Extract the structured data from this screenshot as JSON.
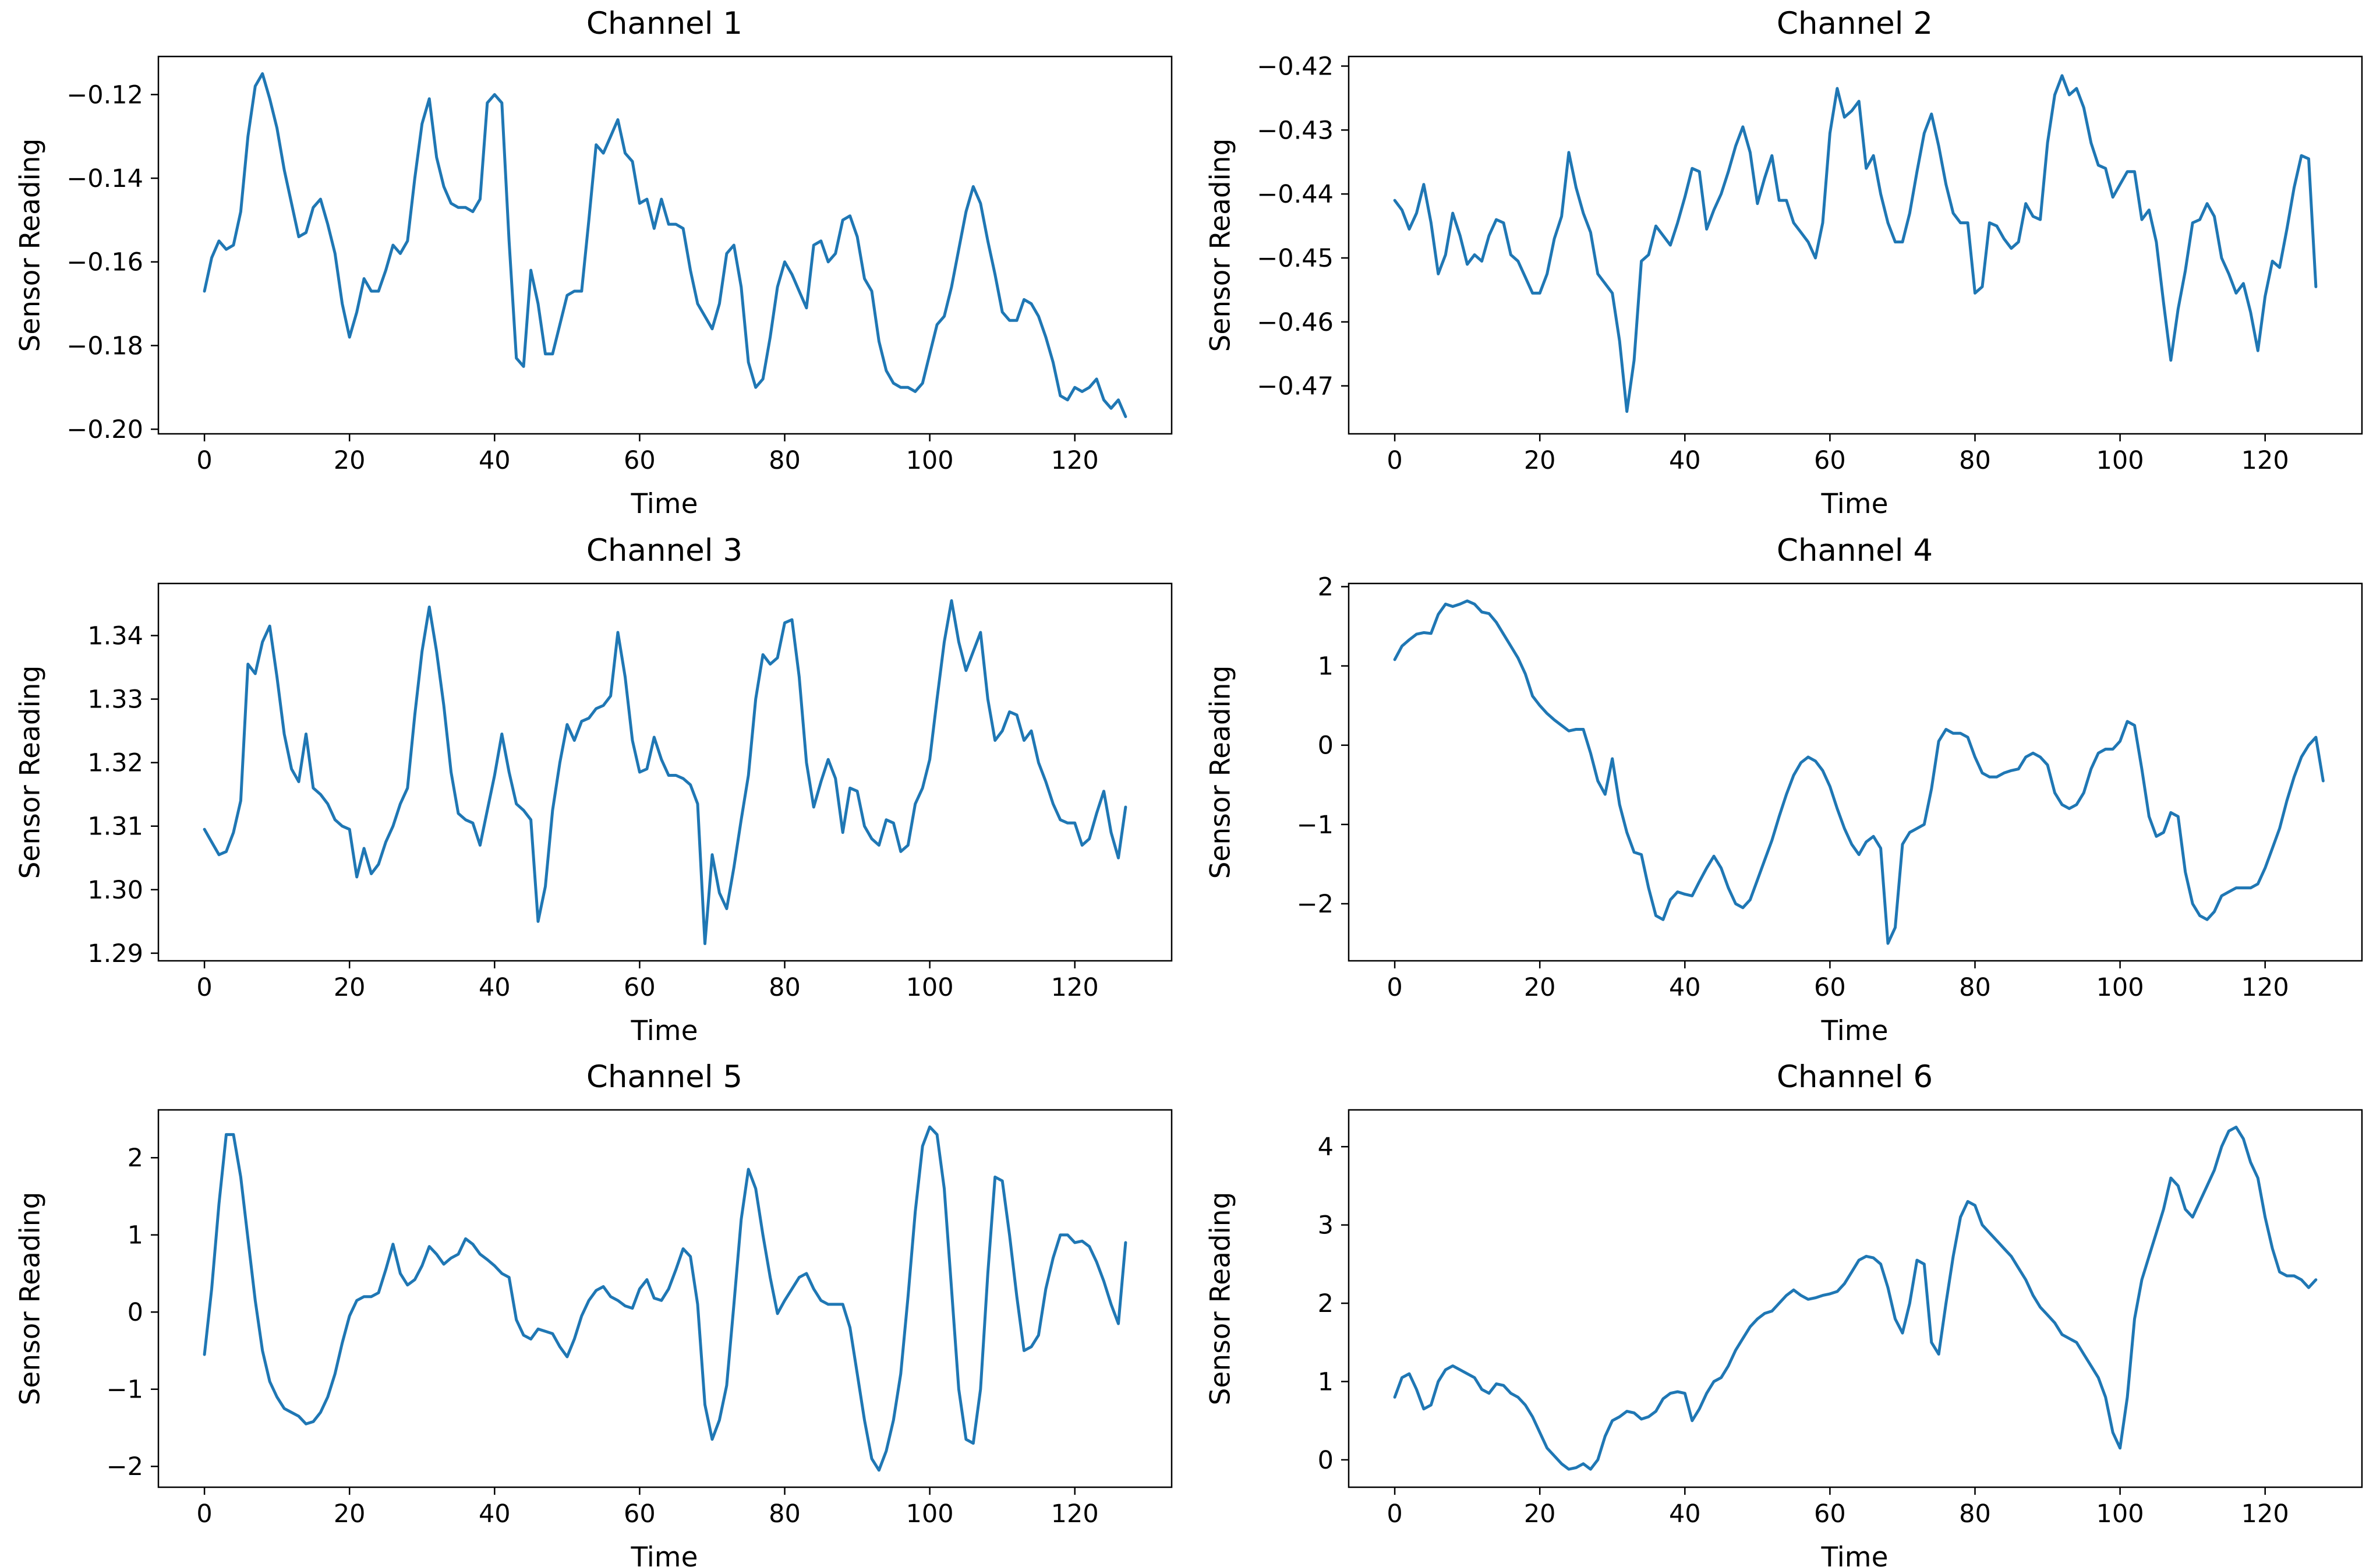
{
  "figure": {
    "background": "#ffffff",
    "line_color": "#1f77b4",
    "axis_color": "#000000",
    "text_color": "#000000"
  },
  "chart_data": [
    {
      "type": "line",
      "title": "Channel 1",
      "xlabel": "Time",
      "ylabel": "Sensor Reading",
      "grid": false,
      "legend": null,
      "xlim": [
        -6.35,
        133.35
      ],
      "ylim": [
        -0.2011,
        -0.1109
      ],
      "xtick_values": [
        0,
        20,
        40,
        60,
        80,
        100,
        120
      ],
      "xtick_labels": [
        "0",
        "20",
        "40",
        "60",
        "80",
        "100",
        "120"
      ],
      "ytick_values": [
        -0.2,
        -0.18,
        -0.16,
        -0.14,
        -0.12
      ],
      "ytick_labels": [
        "−0.20",
        "−0.18",
        "−0.16",
        "−0.14",
        "−0.12"
      ],
      "values": [
        -0.167,
        -0.159,
        -0.155,
        -0.157,
        -0.156,
        -0.148,
        -0.13,
        -0.118,
        -0.115,
        -0.121,
        -0.128,
        -0.138,
        -0.146,
        -0.154,
        -0.153,
        -0.147,
        -0.145,
        -0.151,
        -0.158,
        -0.17,
        -0.178,
        -0.172,
        -0.164,
        -0.167,
        -0.167,
        -0.162,
        -0.156,
        -0.158,
        -0.155,
        -0.14,
        -0.127,
        -0.121,
        -0.135,
        -0.142,
        -0.146,
        -0.147,
        -0.147,
        -0.148,
        -0.145,
        -0.122,
        -0.12,
        -0.122,
        -0.155,
        -0.183,
        -0.185,
        -0.162,
        -0.17,
        -0.182,
        -0.182,
        -0.175,
        -0.168,
        -0.167,
        -0.167,
        -0.15,
        -0.132,
        -0.134,
        -0.13,
        -0.126,
        -0.134,
        -0.136,
        -0.146,
        -0.145,
        -0.152,
        -0.145,
        -0.151,
        -0.151,
        -0.152,
        -0.162,
        -0.17,
        -0.173,
        -0.176,
        -0.17,
        -0.158,
        -0.156,
        -0.166,
        -0.184,
        -0.19,
        -0.188,
        -0.178,
        -0.166,
        -0.16,
        -0.163,
        -0.167,
        -0.171,
        -0.156,
        -0.155,
        -0.16,
        -0.158,
        -0.15,
        -0.149,
        -0.154,
        -0.164,
        -0.167,
        -0.179,
        -0.186,
        -0.189,
        -0.19,
        -0.19,
        -0.191,
        -0.189,
        -0.182,
        -0.175,
        -0.173,
        -0.166,
        -0.157,
        -0.148,
        -0.142,
        -0.146,
        -0.155,
        -0.163,
        -0.172,
        -0.174,
        -0.174,
        -0.169,
        -0.17,
        -0.173,
        -0.178,
        -0.184,
        -0.192,
        -0.193,
        -0.19,
        -0.191,
        -0.19,
        -0.188,
        -0.193,
        -0.195,
        -0.193,
        -0.197
      ]
    },
    {
      "type": "line",
      "title": "Channel 2",
      "xlabel": "Time",
      "ylabel": "Sensor Reading",
      "grid": false,
      "legend": null,
      "xlim": [
        -6.35,
        133.35
      ],
      "ylim": [
        -0.4775,
        -0.4185
      ],
      "xtick_values": [
        0,
        20,
        40,
        60,
        80,
        100,
        120
      ],
      "xtick_labels": [
        "0",
        "20",
        "40",
        "60",
        "80",
        "100",
        "120"
      ],
      "ytick_values": [
        -0.47,
        -0.46,
        -0.45,
        -0.44,
        -0.43,
        -0.42
      ],
      "ytick_labels": [
        "−0.47",
        "−0.46",
        "−0.45",
        "−0.44",
        "−0.43",
        "−0.42"
      ],
      "values": [
        -0.441,
        -0.4425,
        -0.4455,
        -0.443,
        -0.4385,
        -0.4445,
        -0.4525,
        -0.4495,
        -0.443,
        -0.4465,
        -0.451,
        -0.4495,
        -0.4505,
        -0.4465,
        -0.444,
        -0.4445,
        -0.4495,
        -0.4505,
        -0.453,
        -0.4555,
        -0.4555,
        -0.4525,
        -0.447,
        -0.4435,
        -0.4335,
        -0.439,
        -0.443,
        -0.446,
        -0.4525,
        -0.454,
        -0.4555,
        -0.463,
        -0.474,
        -0.466,
        -0.4505,
        -0.4495,
        -0.445,
        -0.4465,
        -0.448,
        -0.4445,
        -0.4405,
        -0.436,
        -0.4365,
        -0.4455,
        -0.4425,
        -0.44,
        -0.4365,
        -0.4325,
        -0.4295,
        -0.4335,
        -0.4415,
        -0.4375,
        -0.434,
        -0.441,
        -0.441,
        -0.4445,
        -0.446,
        -0.4475,
        -0.45,
        -0.4445,
        -0.4305,
        -0.4235,
        -0.428,
        -0.427,
        -0.4255,
        -0.436,
        -0.434,
        -0.44,
        -0.4445,
        -0.4475,
        -0.4475,
        -0.443,
        -0.4365,
        -0.4305,
        -0.4275,
        -0.4325,
        -0.4385,
        -0.443,
        -0.4445,
        -0.4445,
        -0.4555,
        -0.4545,
        -0.4445,
        -0.445,
        -0.447,
        -0.4485,
        -0.4475,
        -0.4415,
        -0.4435,
        -0.444,
        -0.432,
        -0.4245,
        -0.4215,
        -0.4245,
        -0.4235,
        -0.4265,
        -0.432,
        -0.4355,
        -0.436,
        -0.4405,
        -0.4385,
        -0.4365,
        -0.4365,
        -0.444,
        -0.4425,
        -0.4475,
        -0.457,
        -0.466,
        -0.458,
        -0.452,
        -0.4445,
        -0.444,
        -0.4415,
        -0.4435,
        -0.45,
        -0.4525,
        -0.4555,
        -0.454,
        -0.4585,
        -0.4645,
        -0.456,
        -0.4505,
        -0.4515,
        -0.4455,
        -0.439,
        -0.434,
        -0.4345,
        -0.4545
      ]
    },
    {
      "type": "line",
      "title": "Channel 3",
      "xlabel": "Time",
      "ylabel": "Sensor Reading",
      "grid": false,
      "legend": null,
      "xlim": [
        -6.35,
        133.35
      ],
      "ylim": [
        1.2888,
        1.3482
      ],
      "xtick_values": [
        0,
        20,
        40,
        60,
        80,
        100,
        120
      ],
      "xtick_labels": [
        "0",
        "20",
        "40",
        "60",
        "80",
        "100",
        "120"
      ],
      "ytick_values": [
        1.29,
        1.3,
        1.31,
        1.32,
        1.33,
        1.34
      ],
      "ytick_labels": [
        "1.29",
        "1.30",
        "1.31",
        "1.32",
        "1.33",
        "1.34"
      ],
      "values": [
        1.3095,
        1.3075,
        1.3055,
        1.306,
        1.309,
        1.314,
        1.3355,
        1.334,
        1.339,
        1.3415,
        1.3335,
        1.3245,
        1.319,
        1.317,
        1.3245,
        1.316,
        1.315,
        1.3135,
        1.311,
        1.31,
        1.3095,
        1.302,
        1.3065,
        1.3025,
        1.304,
        1.3075,
        1.31,
        1.3135,
        1.316,
        1.3275,
        1.3375,
        1.3445,
        1.3375,
        1.329,
        1.3185,
        1.312,
        1.311,
        1.3105,
        1.307,
        1.3125,
        1.318,
        1.3245,
        1.3185,
        1.3135,
        1.3125,
        1.311,
        1.295,
        1.3005,
        1.3125,
        1.32,
        1.326,
        1.3235,
        1.3265,
        1.327,
        1.3285,
        1.329,
        1.3305,
        1.3405,
        1.3335,
        1.3235,
        1.3185,
        1.319,
        1.324,
        1.3205,
        1.318,
        1.318,
        1.3175,
        1.3165,
        1.3135,
        1.2915,
        1.3055,
        1.2995,
        1.297,
        1.3035,
        1.311,
        1.318,
        1.33,
        1.337,
        1.3355,
        1.3365,
        1.342,
        1.3425,
        1.3335,
        1.32,
        1.313,
        1.317,
        1.3205,
        1.3175,
        1.309,
        1.316,
        1.3155,
        1.31,
        1.308,
        1.307,
        1.311,
        1.3105,
        1.306,
        1.307,
        1.3135,
        1.316,
        1.3205,
        1.33,
        1.339,
        1.3455,
        1.339,
        1.3345,
        1.3375,
        1.3405,
        1.33,
        1.3235,
        1.325,
        1.328,
        1.3275,
        1.3235,
        1.325,
        1.32,
        1.317,
        1.3135,
        1.311,
        1.3105,
        1.3105,
        1.307,
        1.308,
        1.312,
        1.3155,
        1.309,
        1.305,
        1.313
      ]
    },
    {
      "type": "line",
      "title": "Channel 4",
      "xlabel": "Time",
      "ylabel": "Sensor Reading",
      "grid": false,
      "legend": null,
      "xlim": [
        -6.35,
        133.35
      ],
      "ylim": [
        -2.72,
        2.04
      ],
      "xtick_values": [
        0,
        20,
        40,
        60,
        80,
        100,
        120
      ],
      "xtick_labels": [
        "0",
        "20",
        "40",
        "60",
        "80",
        "100",
        "120"
      ],
      "ytick_values": [
        -2,
        -1,
        0,
        1,
        2
      ],
      "ytick_labels": [
        "−2",
        "−1",
        "0",
        "1",
        "2"
      ],
      "values": [
        1.08,
        1.25,
        1.33,
        1.4,
        1.42,
        1.41,
        1.65,
        1.78,
        1.75,
        1.78,
        1.82,
        1.78,
        1.68,
        1.66,
        1.55,
        1.4,
        1.25,
        1.1,
        0.9,
        0.62,
        0.5,
        0.4,
        0.32,
        0.25,
        0.18,
        0.2,
        0.2,
        -0.1,
        -0.45,
        -0.62,
        -0.17,
        -0.75,
        -1.1,
        -1.35,
        -1.38,
        -1.8,
        -2.15,
        -2.2,
        -1.95,
        -1.85,
        -1.88,
        -1.9,
        -1.72,
        -1.55,
        -1.4,
        -1.55,
        -1.8,
        -2.0,
        -2.05,
        -1.95,
        -1.7,
        -1.45,
        -1.2,
        -0.9,
        -0.62,
        -0.38,
        -0.22,
        -0.15,
        -0.2,
        -0.32,
        -0.52,
        -0.8,
        -1.05,
        -1.25,
        -1.38,
        -1.22,
        -1.15,
        -1.3,
        -2.5,
        -2.3,
        -1.25,
        -1.1,
        -1.05,
        -1.0,
        -0.55,
        0.05,
        0.2,
        0.15,
        0.15,
        0.1,
        -0.15,
        -0.35,
        -0.4,
        -0.4,
        -0.35,
        -0.32,
        -0.3,
        -0.15,
        -0.1,
        -0.15,
        -0.25,
        -0.6,
        -0.75,
        -0.8,
        -0.75,
        -0.6,
        -0.3,
        -0.1,
        -0.05,
        -0.05,
        0.05,
        0.3,
        0.25,
        -0.3,
        -0.9,
        -1.15,
        -1.1,
        -0.85,
        -0.9,
        -1.6,
        -2.0,
        -2.15,
        -2.2,
        -2.1,
        -1.9,
        -1.85,
        -1.8,
        -1.8,
        -1.8,
        -1.75,
        -1.55,
        -1.3,
        -1.05,
        -0.7,
        -0.4,
        -0.15,
        0.0,
        0.1,
        -0.45
      ]
    },
    {
      "type": "line",
      "title": "Channel 5",
      "xlabel": "Time",
      "ylabel": "Sensor Reading",
      "grid": false,
      "legend": null,
      "xlim": [
        -6.35,
        133.35
      ],
      "ylim": [
        -2.27,
        2.62
      ],
      "xtick_values": [
        0,
        20,
        40,
        60,
        80,
        100,
        120
      ],
      "xtick_labels": [
        "0",
        "20",
        "40",
        "60",
        "80",
        "100",
        "120"
      ],
      "ytick_values": [
        -2,
        -1,
        0,
        1,
        2
      ],
      "ytick_labels": [
        "−2",
        "−1",
        "0",
        "1",
        "2"
      ],
      "values": [
        -0.55,
        0.3,
        1.4,
        2.3,
        2.3,
        1.75,
        0.95,
        0.15,
        -0.5,
        -0.9,
        -1.1,
        -1.25,
        -1.3,
        -1.35,
        -1.45,
        -1.42,
        -1.3,
        -1.1,
        -0.8,
        -0.4,
        -0.05,
        0.15,
        0.2,
        0.2,
        0.25,
        0.55,
        0.88,
        0.5,
        0.35,
        0.42,
        0.6,
        0.85,
        0.75,
        0.62,
        0.7,
        0.75,
        0.95,
        0.88,
        0.75,
        0.68,
        0.6,
        0.5,
        0.45,
        -0.1,
        -0.3,
        -0.35,
        -0.22,
        -0.25,
        -0.28,
        -0.45,
        -0.58,
        -0.35,
        -0.05,
        0.15,
        0.28,
        0.33,
        0.2,
        0.15,
        0.08,
        0.05,
        0.3,
        0.42,
        0.18,
        0.15,
        0.3,
        0.55,
        0.82,
        0.72,
        0.1,
        -1.2,
        -1.65,
        -1.4,
        -0.95,
        0.1,
        1.2,
        1.85,
        1.6,
        1.0,
        0.45,
        -0.02,
        0.15,
        0.3,
        0.45,
        0.5,
        0.3,
        0.15,
        0.1,
        0.1,
        0.1,
        -0.2,
        -0.8,
        -1.4,
        -1.9,
        -2.05,
        -1.8,
        -1.4,
        -0.8,
        0.2,
        1.3,
        2.15,
        2.4,
        2.3,
        1.6,
        0.3,
        -1.0,
        -1.65,
        -1.7,
        -1.0,
        0.5,
        1.75,
        1.7,
        1.0,
        0.2,
        -0.5,
        -0.45,
        -0.3,
        0.3,
        0.7,
        1.0,
        1.0,
        0.9,
        0.92,
        0.85,
        0.65,
        0.4,
        0.1,
        -0.15,
        0.9
      ]
    },
    {
      "type": "line",
      "title": "Channel 6",
      "xlabel": "Time",
      "ylabel": "Sensor Reading",
      "grid": false,
      "legend": null,
      "xlim": [
        -6.35,
        133.35
      ],
      "ylim": [
        -0.35,
        4.47
      ],
      "xtick_values": [
        0,
        20,
        40,
        60,
        80,
        100,
        120
      ],
      "xtick_labels": [
        "0",
        "20",
        "40",
        "60",
        "80",
        "100",
        "120"
      ],
      "ytick_values": [
        0,
        1,
        2,
        3,
        4
      ],
      "ytick_labels": [
        "0",
        "1",
        "2",
        "3",
        "4"
      ],
      "values": [
        0.8,
        1.05,
        1.1,
        0.9,
        0.65,
        0.7,
        1.0,
        1.15,
        1.2,
        1.15,
        1.1,
        1.05,
        0.9,
        0.85,
        0.97,
        0.95,
        0.85,
        0.8,
        0.7,
        0.55,
        0.35,
        0.15,
        0.05,
        -0.05,
        -0.12,
        -0.1,
        -0.05,
        -0.12,
        0.0,
        0.3,
        0.5,
        0.55,
        0.62,
        0.6,
        0.52,
        0.55,
        0.62,
        0.78,
        0.85,
        0.87,
        0.85,
        0.5,
        0.65,
        0.85,
        1.0,
        1.05,
        1.2,
        1.4,
        1.55,
        1.7,
        1.8,
        1.87,
        1.9,
        2.0,
        2.1,
        2.17,
        2.1,
        2.05,
        2.07,
        2.1,
        2.12,
        2.15,
        2.25,
        2.4,
        2.55,
        2.6,
        2.58,
        2.5,
        2.2,
        1.8,
        1.62,
        2.0,
        2.55,
        2.5,
        1.5,
        1.35,
        2.0,
        2.6,
        3.1,
        3.3,
        3.25,
        3.0,
        2.9,
        2.8,
        2.7,
        2.6,
        2.45,
        2.3,
        2.1,
        1.95,
        1.85,
        1.75,
        1.6,
        1.55,
        1.5,
        1.35,
        1.2,
        1.05,
        0.8,
        0.35,
        0.15,
        0.8,
        1.8,
        2.3,
        2.6,
        2.9,
        3.2,
        3.6,
        3.5,
        3.2,
        3.1,
        3.3,
        3.5,
        3.7,
        4.0,
        4.2,
        4.25,
        4.1,
        3.8,
        3.6,
        3.1,
        2.7,
        2.4,
        2.35,
        2.35,
        2.3,
        2.2,
        2.3
      ]
    }
  ]
}
